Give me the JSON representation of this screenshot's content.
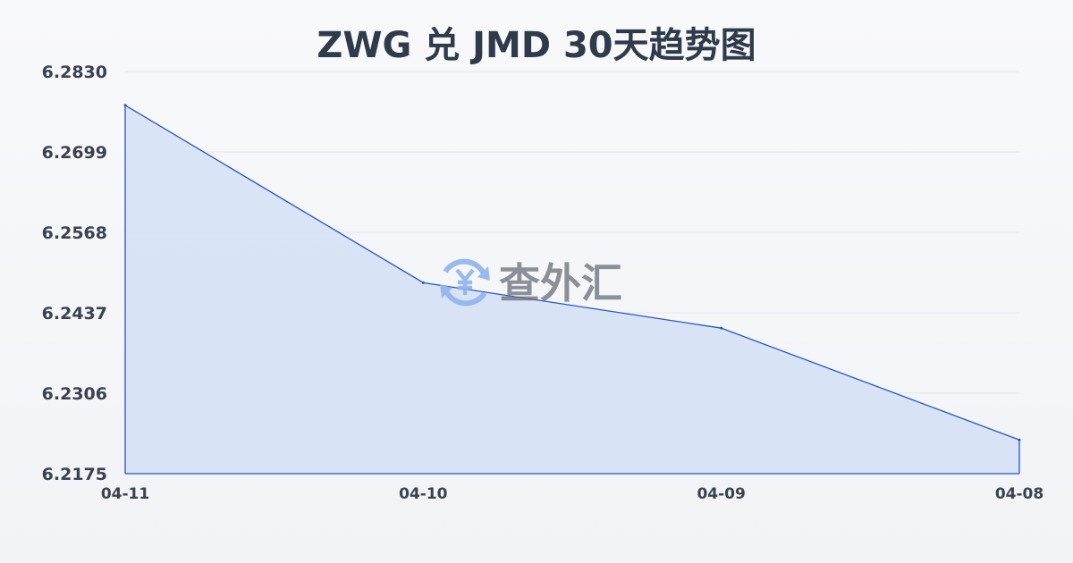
{
  "chart_data": {
    "type": "area",
    "title": "ZWG 兑 JMD 30天趋势图",
    "categories": [
      "04-11",
      "04-10",
      "04-09",
      "04-08"
    ],
    "values": [
      6.2775,
      6.2486,
      6.2412,
      6.223
    ],
    "yticks": [
      "6.2830",
      "6.2699",
      "6.2568",
      "6.2437",
      "6.2306",
      "6.2175"
    ],
    "ylim": [
      6.2175,
      6.283
    ],
    "grid": true,
    "colors": {
      "line": "#2456c8",
      "fill": "#d6e1f5"
    }
  },
  "watermark": {
    "text": "查外汇",
    "icon": "yen-exchange-icon"
  }
}
